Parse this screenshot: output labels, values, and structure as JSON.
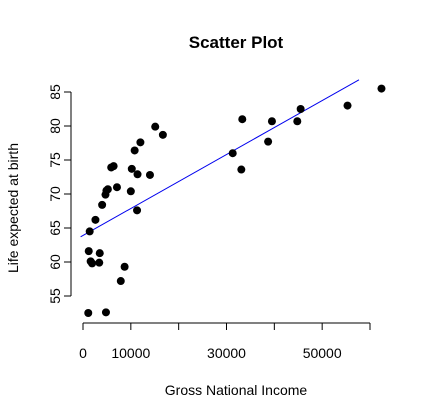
{
  "chart_data": {
    "type": "scatter",
    "title": "Scatter Plot",
    "xlabel": "Gross National Income",
    "ylabel": "Life expected at birth",
    "xlim": [
      0,
      60000
    ],
    "ylim": [
      53,
      86
    ],
    "x_ticks": [
      0,
      10000,
      30000,
      50000
    ],
    "x_tick_marks": [
      0,
      10000,
      20000,
      30000,
      40000,
      50000,
      60000
    ],
    "y_ticks": [
      55,
      60,
      65,
      70,
      75,
      80,
      85
    ],
    "grid": false,
    "series": [
      {
        "points": [
          {
            "x": 1100,
            "y": 52.5
          },
          {
            "x": 4800,
            "y": 52.6
          },
          {
            "x": 7900,
            "y": 57.2
          },
          {
            "x": 8700,
            "y": 59.3
          },
          {
            "x": 1200,
            "y": 61.6
          },
          {
            "x": 1600,
            "y": 60.1
          },
          {
            "x": 1900,
            "y": 59.8
          },
          {
            "x": 3400,
            "y": 59.9
          },
          {
            "x": 3500,
            "y": 61.3
          },
          {
            "x": 1400,
            "y": 64.5
          },
          {
            "x": 2600,
            "y": 66.2
          },
          {
            "x": 4000,
            "y": 68.4
          },
          {
            "x": 4700,
            "y": 69.9
          },
          {
            "x": 4900,
            "y": 70.5
          },
          {
            "x": 5200,
            "y": 70.7
          },
          {
            "x": 7100,
            "y": 71.0
          },
          {
            "x": 5900,
            "y": 73.9
          },
          {
            "x": 6400,
            "y": 74.1
          },
          {
            "x": 10000,
            "y": 70.4
          },
          {
            "x": 10200,
            "y": 73.7
          },
          {
            "x": 11400,
            "y": 72.9
          },
          {
            "x": 14000,
            "y": 72.8
          },
          {
            "x": 11300,
            "y": 67.6
          },
          {
            "x": 10800,
            "y": 76.4
          },
          {
            "x": 12000,
            "y": 77.6
          },
          {
            "x": 15100,
            "y": 79.9
          },
          {
            "x": 16700,
            "y": 78.7
          },
          {
            "x": 31300,
            "y": 76.0
          },
          {
            "x": 33100,
            "y": 73.6
          },
          {
            "x": 33300,
            "y": 81.0
          },
          {
            "x": 38700,
            "y": 77.7
          },
          {
            "x": 39500,
            "y": 80.7
          },
          {
            "x": 44800,
            "y": 80.7
          },
          {
            "x": 45500,
            "y": 82.5
          },
          {
            "x": 55300,
            "y": 83.0
          },
          {
            "x": 62400,
            "y": 85.5
          }
        ]
      }
    ],
    "trendline": {
      "x_start": -500,
      "y_start": 63.7,
      "x_end": 57700,
      "y_end": 86.8
    },
    "colors": {
      "points": "#000000",
      "trendline": "#0000ee",
      "axes": "#000000"
    }
  }
}
